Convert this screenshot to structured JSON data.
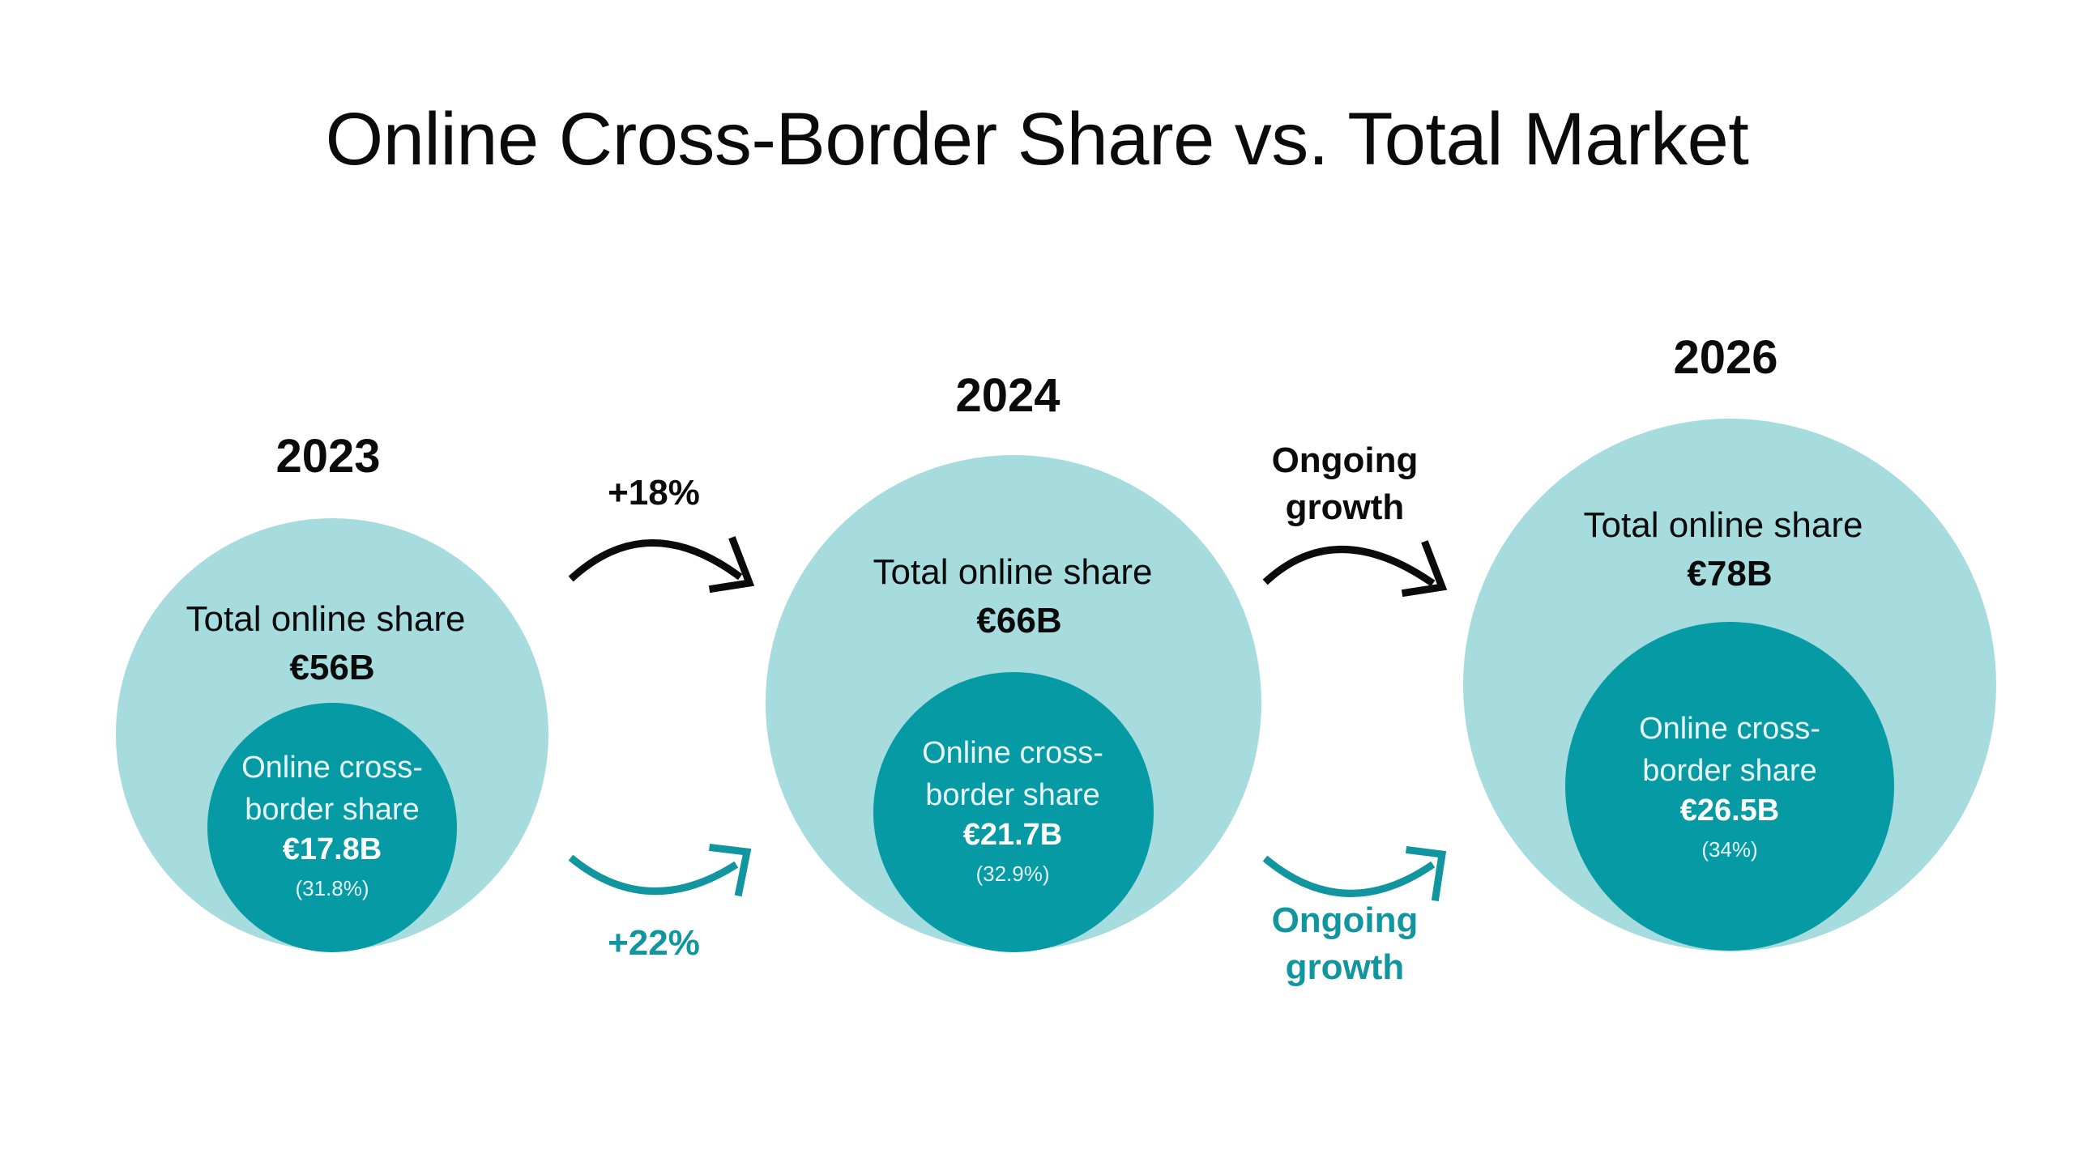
{
  "title": "Online Cross-Border Share vs. Total Market",
  "colors": {
    "total_circle": "#a7dcdf",
    "cross_border_circle": "#069ba4",
    "accent_teal": "#11969f",
    "text_dark": "#0b0b0b"
  },
  "years": [
    {
      "year": "2023",
      "total_label": "Total online share",
      "total_value": "€56B",
      "cross_label_line1": "Online cross-",
      "cross_label_line2": "border share",
      "cross_value": "€17.8B",
      "cross_pct": "(31.8%)"
    },
    {
      "year": "2024",
      "total_label": "Total online share",
      "total_value": "€66B",
      "cross_label_line1": "Online cross-",
      "cross_label_line2": "border share",
      "cross_value": "€21.7B",
      "cross_pct": "(32.9%)"
    },
    {
      "year": "2026",
      "total_label": "Total online share",
      "total_value": "€78B",
      "cross_label_line1": "Online cross-",
      "cross_label_line2": "border share",
      "cross_value": "€26.5B",
      "cross_pct": "(34%)"
    }
  ],
  "transitions": [
    {
      "total_growth": "+18%",
      "cross_growth": "+22%"
    },
    {
      "total_growth_line1": "Ongoing",
      "total_growth_line2": "growth",
      "cross_growth_line1": "Ongoing",
      "cross_growth_line2": "growth"
    }
  ]
}
